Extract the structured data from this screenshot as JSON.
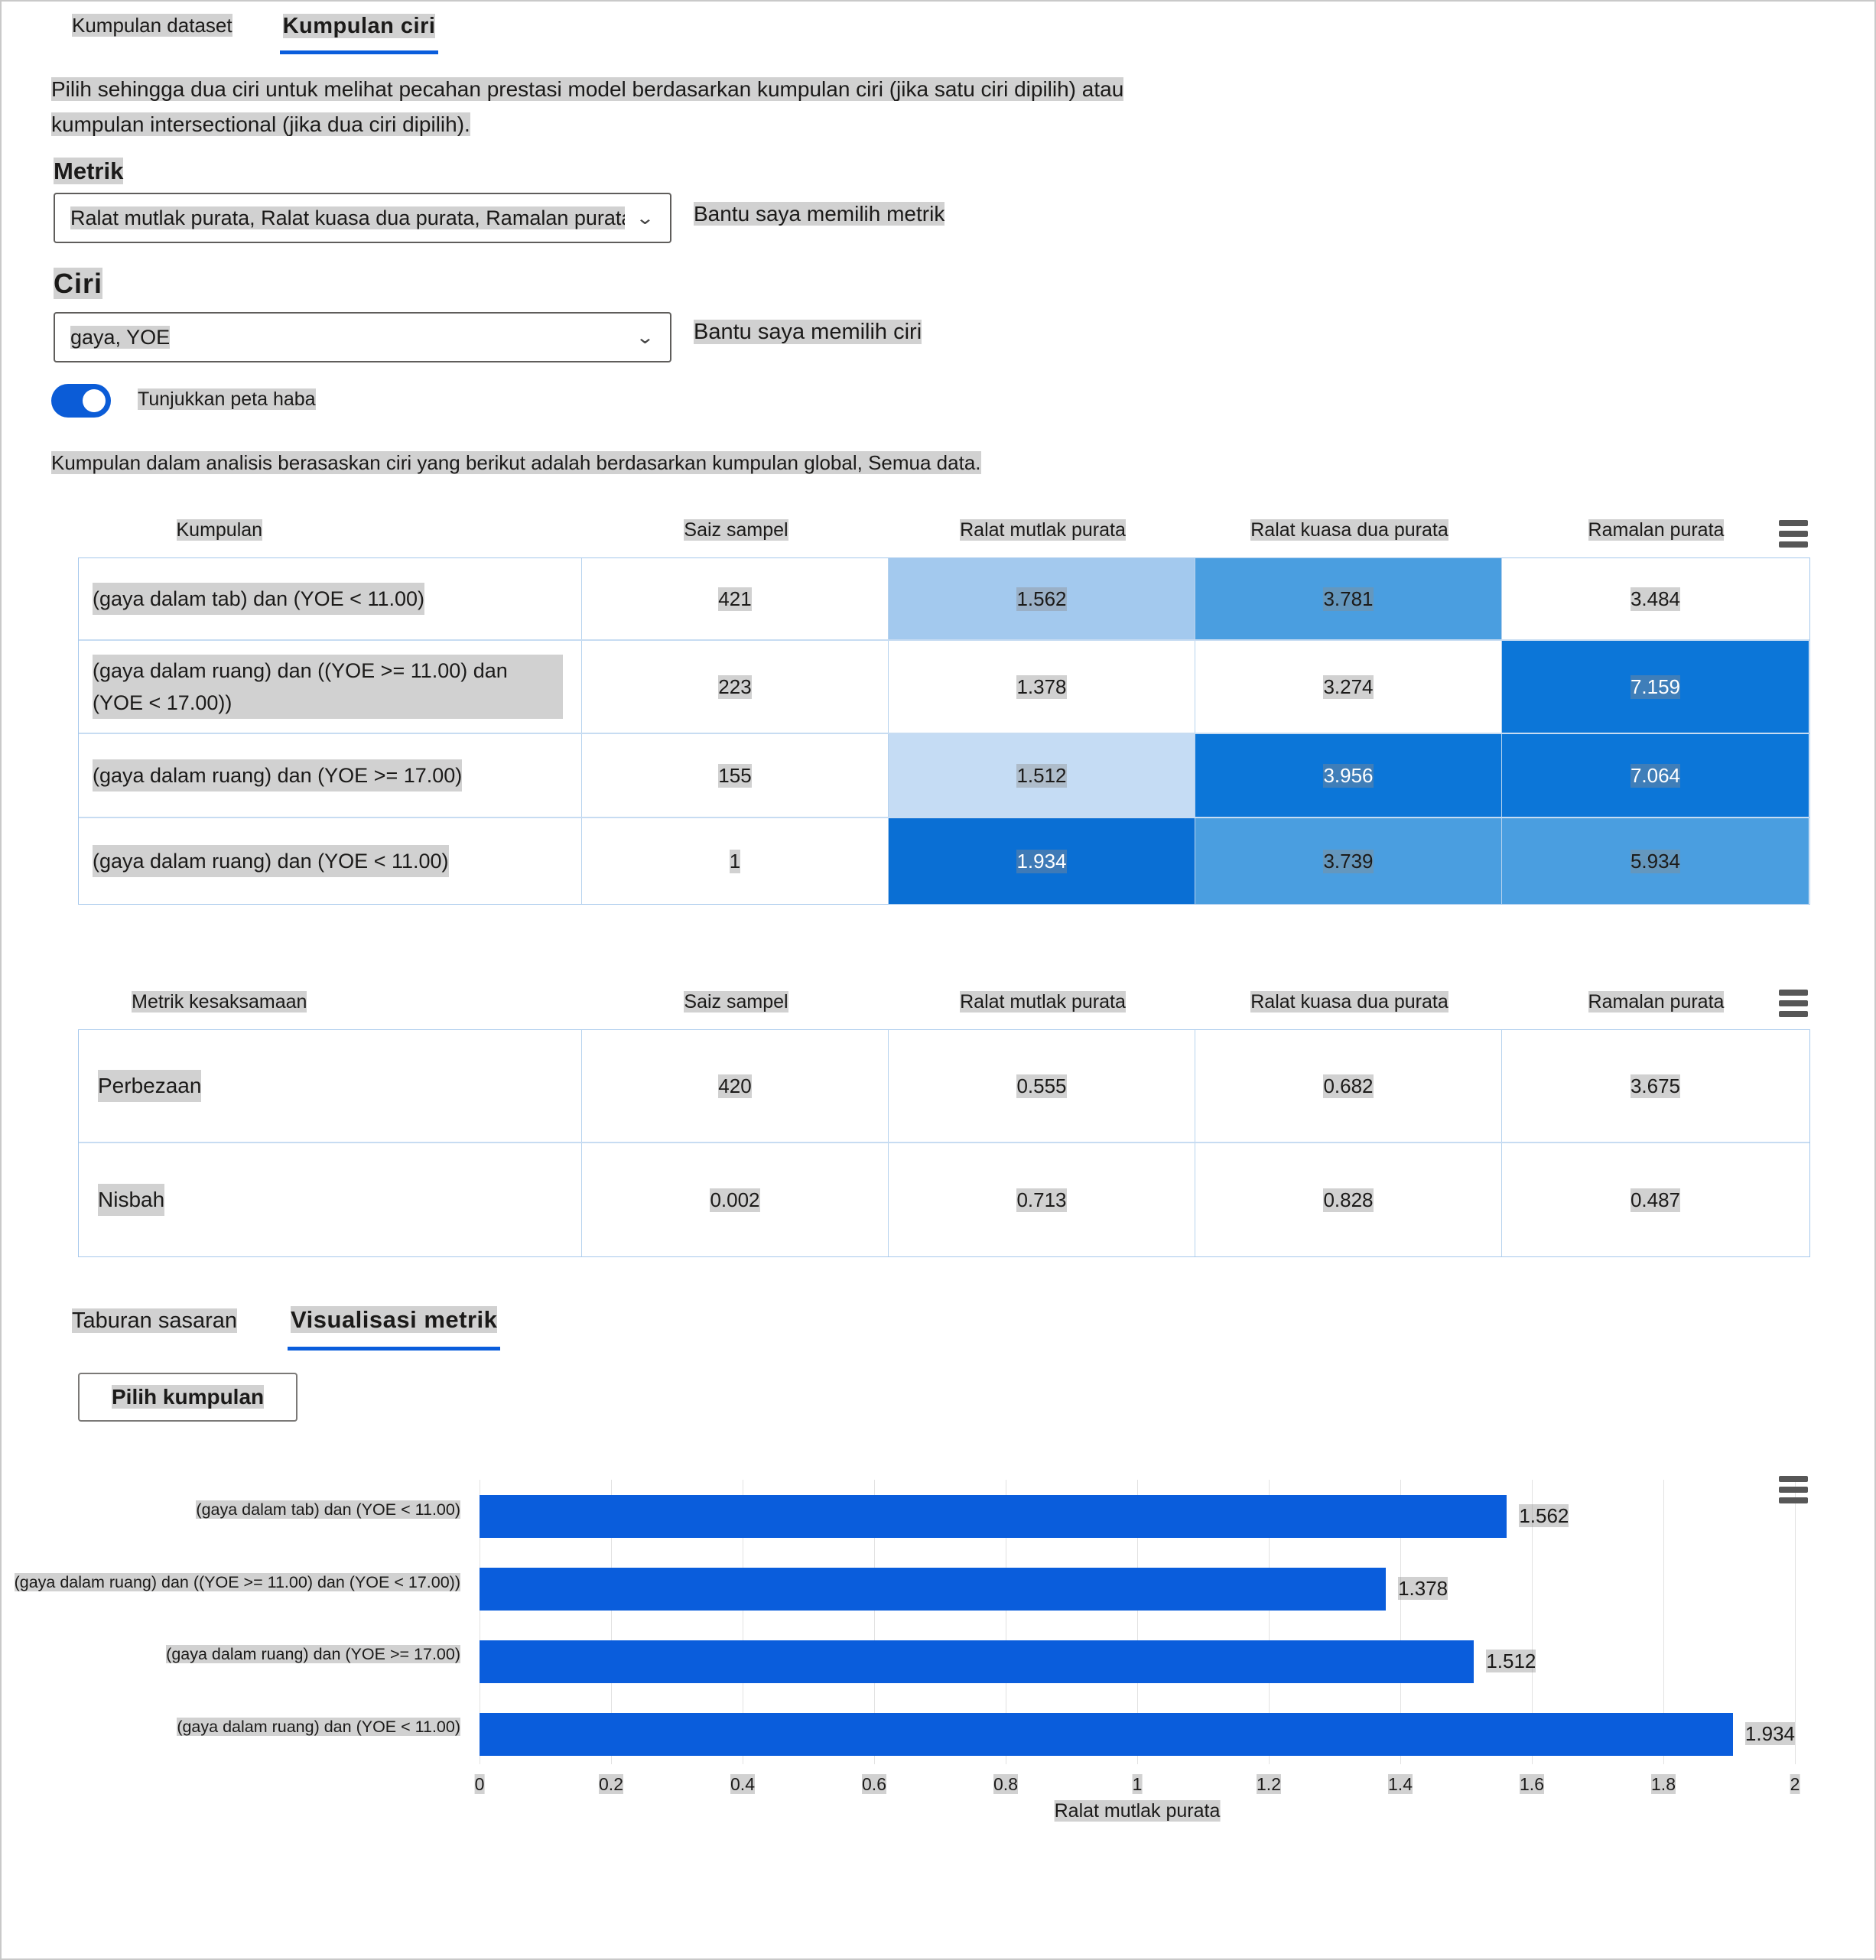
{
  "colors": {
    "accent": "#0A5DDC",
    "toggle_on": "#0B5CD7"
  },
  "top_tabs": [
    {
      "label": "Kumpulan dataset",
      "active": false
    },
    {
      "label": "Kumpulan ciri",
      "active": true
    }
  ],
  "description": "Pilih sehingga dua ciri untuk melihat pecahan prestasi model berdasarkan kumpulan ciri (jika satu ciri dipilih) atau kumpulan intersectional (jika dua ciri dipilih).",
  "metric_section": {
    "label": "Metrik",
    "dropdown_value": "Ralat mutlak purata, Ralat kuasa dua purata, Ramalan purata ...",
    "help_link": "Bantu saya memilih metrik"
  },
  "feature_section": {
    "label": "Ciri",
    "dropdown_value": "gaya, YOE",
    "help_link": "Bantu saya memilih ciri"
  },
  "heatmap_toggle": {
    "label": "Tunjukkan peta haba",
    "on": true
  },
  "analysis_note": "Kumpulan dalam analisis berasaskan ciri yang berikut adalah berdasarkan kumpulan global, Semua data.",
  "cohort_table": {
    "columns": [
      "Kumpulan",
      "Saiz sampel",
      "Ralat mutlak purata",
      "Ralat kuasa dua purata",
      "Ramalan purata"
    ],
    "rows": [
      {
        "name": "(gaya dalam tab) dan (YOE < 11.00)",
        "size": "421",
        "cells": [
          {
            "value": "1.562",
            "bg": "#A3C9EE",
            "fg": "#1b1a19"
          },
          {
            "value": "3.781",
            "bg": "#4A9EE0",
            "fg": "#1b1a19"
          },
          {
            "value": "3.484",
            "bg": "#FFFFFF",
            "fg": "#1b1a19"
          }
        ]
      },
      {
        "name": "(gaya dalam ruang) dan ((YOE >= 11.00) dan (YOE < 17.00))",
        "size": "223",
        "cells": [
          {
            "value": "1.378",
            "bg": "#FFFFFF",
            "fg": "#1b1a19"
          },
          {
            "value": "3.274",
            "bg": "#FFFFFF",
            "fg": "#1b1a19"
          },
          {
            "value": "7.159",
            "bg": "#0C76D8",
            "fg": "#ffffff"
          }
        ]
      },
      {
        "name": "(gaya dalam ruang) dan (YOE >= 17.00)",
        "size": "155",
        "cells": [
          {
            "value": "1.512",
            "bg": "#C5DCF4",
            "fg": "#1b1a19"
          },
          {
            "value": "3.956",
            "bg": "#0C76D8",
            "fg": "#ffffff"
          },
          {
            "value": "7.064",
            "bg": "#0C76D8",
            "fg": "#ffffff"
          }
        ]
      },
      {
        "name": "(gaya dalam ruang) dan (YOE < 11.00)",
        "size": "1",
        "cells": [
          {
            "value": "1.934",
            "bg": "#0A6FD4",
            "fg": "#ffffff"
          },
          {
            "value": "3.739",
            "bg": "#4A9EE0",
            "fg": "#1b1a19"
          },
          {
            "value": "5.934",
            "bg": "#4A9EE0",
            "fg": "#1b1a19"
          }
        ]
      }
    ]
  },
  "fairness_table": {
    "columns": [
      "Metrik kesaksamaan",
      "Saiz sampel",
      "Ralat mutlak purata",
      "Ralat kuasa dua purata",
      "Ramalan purata"
    ],
    "rows": [
      {
        "name": "Perbezaan",
        "values": [
          "420",
          "0.555",
          "0.682",
          "3.675"
        ]
      },
      {
        "name": "Nisbah",
        "values": [
          "0.002",
          "0.713",
          "0.828",
          "0.487"
        ]
      }
    ]
  },
  "bottom_tabs": [
    {
      "label": "Taburan sasaran",
      "active": false
    },
    {
      "label": "Visualisasi metrik",
      "active": true
    }
  ],
  "select_cohort_button": "Pilih kumpulan",
  "chart_data": {
    "type": "bar",
    "orientation": "horizontal",
    "categories": [
      "(gaya dalam tab) dan (YOE < 11.00)",
      "(gaya dalam ruang) dan ((YOE >= 11.00) dan (YOE < 17.00))",
      "(gaya dalam ruang) dan (YOE >= 17.00)",
      "(gaya dalam ruang) dan (YOE < 11.00)"
    ],
    "values": [
      "1.562",
      "1.378",
      "1.512",
      "1.934"
    ],
    "values_numeric": [
      1.562,
      1.378,
      1.512,
      1.934
    ],
    "xlabel": "Ralat mutlak purata",
    "xlim": [
      0,
      2
    ],
    "xtick_labels": [
      "0",
      "0.2",
      "0.4",
      "0.6",
      "0.8",
      "1",
      "1.2",
      "1.4",
      "1.6",
      "1.8",
      "2"
    ],
    "bar_color": "#0A5DDC",
    "grid": true,
    "legend": "none"
  }
}
